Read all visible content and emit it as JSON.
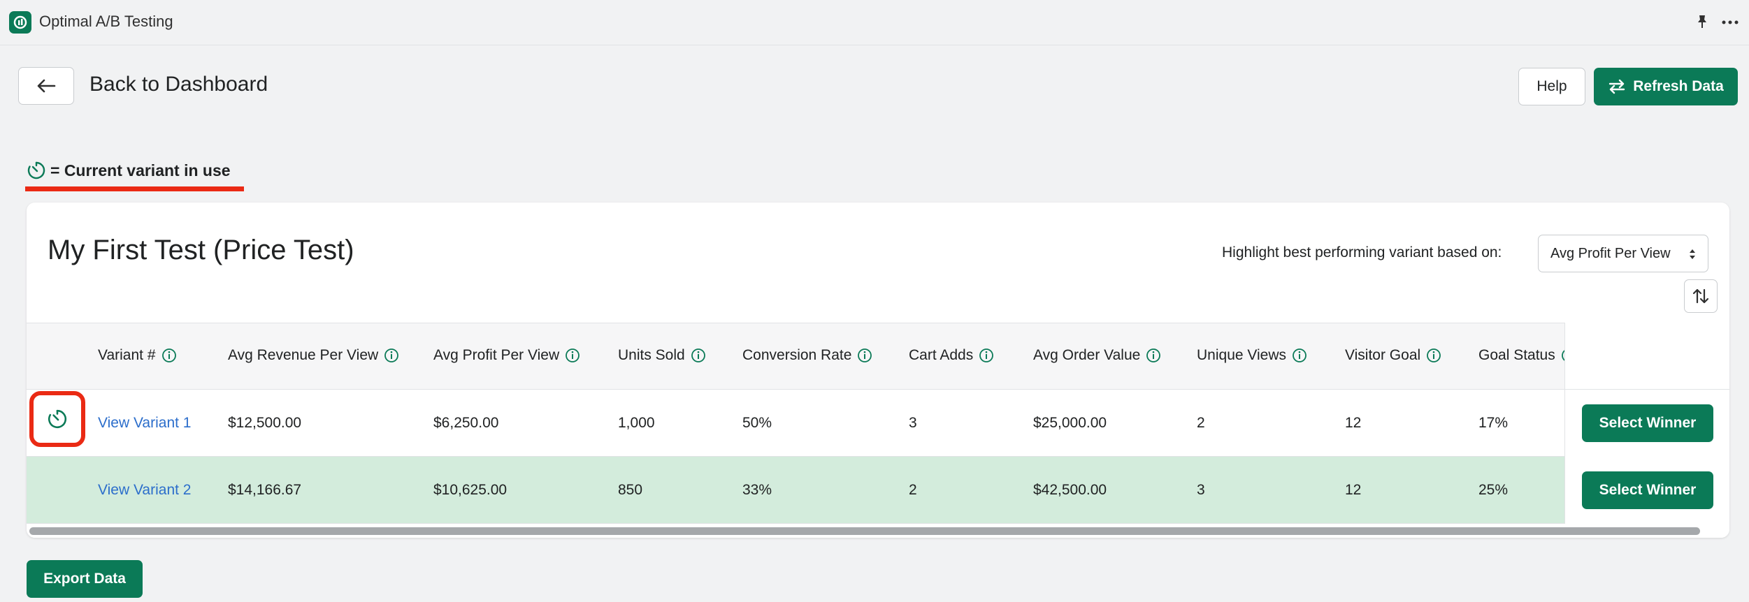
{
  "app": {
    "title": "Optimal A/B Testing"
  },
  "header": {
    "back_label": "Back to Dashboard",
    "help_label": "Help",
    "refresh_label": "Refresh Data"
  },
  "legend": {
    "text": "= Current variant in use"
  },
  "test": {
    "title": "My First Test (Price Test)",
    "highlight_label": "Highlight best performing variant based on:",
    "highlight_metric": "Avg Profit Per View"
  },
  "table": {
    "columns": [
      "Variant #",
      "Avg Revenue Per View",
      "Avg Profit Per View",
      "Units Sold",
      "Conversion Rate",
      "Cart Adds",
      "Avg Order Value",
      "Unique Views",
      "Visitor Goal",
      "Goal Status"
    ],
    "rows": [
      {
        "variant": "View Variant 1",
        "current": true,
        "highlighted": false,
        "avg_revenue": "$12,500.00",
        "avg_profit": "$6,250.00",
        "units_sold": "1,000",
        "conversion_rate": "50%",
        "cart_adds": "3",
        "avg_order_value": "$25,000.00",
        "unique_views": "2",
        "visitor_goal": "12",
        "goal_status": "17%",
        "action": "Select Winner"
      },
      {
        "variant": "View Variant 2",
        "current": false,
        "highlighted": true,
        "avg_revenue": "$14,166.67",
        "avg_profit": "$10,625.00",
        "units_sold": "850",
        "conversion_rate": "33%",
        "cart_adds": "2",
        "avg_order_value": "$42,500.00",
        "unique_views": "3",
        "visitor_goal": "12",
        "goal_status": "25%",
        "action": "Select Winner"
      }
    ]
  },
  "footer": {
    "export_label": "Export Data"
  },
  "colors": {
    "primary": "#0b7a57",
    "highlight_row": "#d3ecdc",
    "annotation": "#ea2a14",
    "link": "#2c6ecb"
  }
}
